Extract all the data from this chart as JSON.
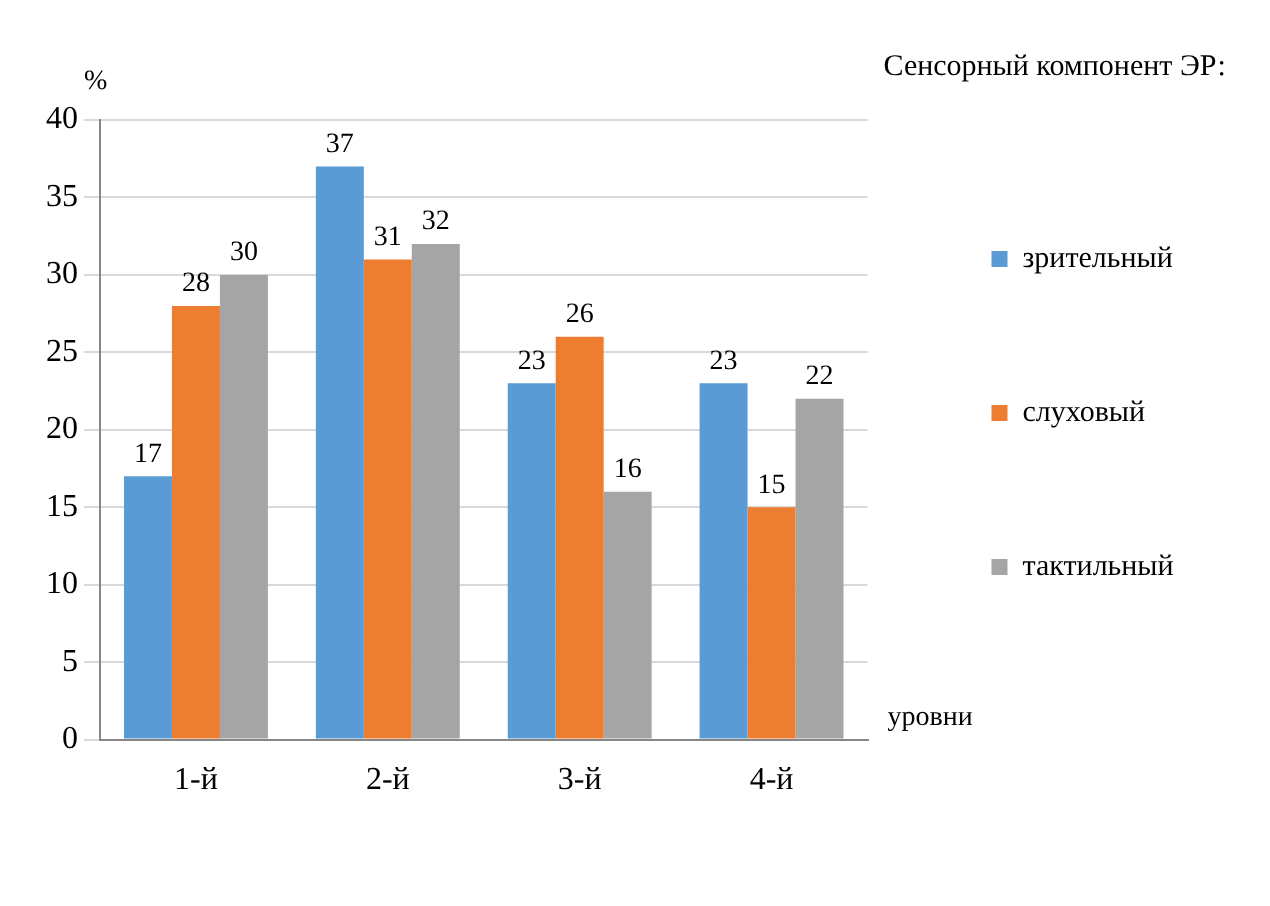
{
  "chart_data": {
    "type": "bar",
    "legend_title": "Сенсорный компонент ЭР:",
    "ylabel": "%",
    "xlabel": "уровни",
    "categories": [
      "1-й",
      "2-й",
      "3-й",
      "4-й"
    ],
    "series": [
      {
        "name": "зрительный",
        "color": "#5b9bd5",
        "values": [
          17,
          37,
          23,
          23
        ]
      },
      {
        "name": "слуховый",
        "color": "#ed7d31",
        "values": [
          28,
          31,
          26,
          15
        ]
      },
      {
        "name": "тактильный",
        "color": "#a5a5a5",
        "values": [
          30,
          32,
          16,
          22
        ]
      }
    ],
    "ylim": [
      0,
      40
    ],
    "yticks": [
      0,
      5,
      10,
      15,
      20,
      25,
      30,
      35,
      40
    ],
    "grid": "y",
    "legend": "right",
    "data_labels": true
  }
}
